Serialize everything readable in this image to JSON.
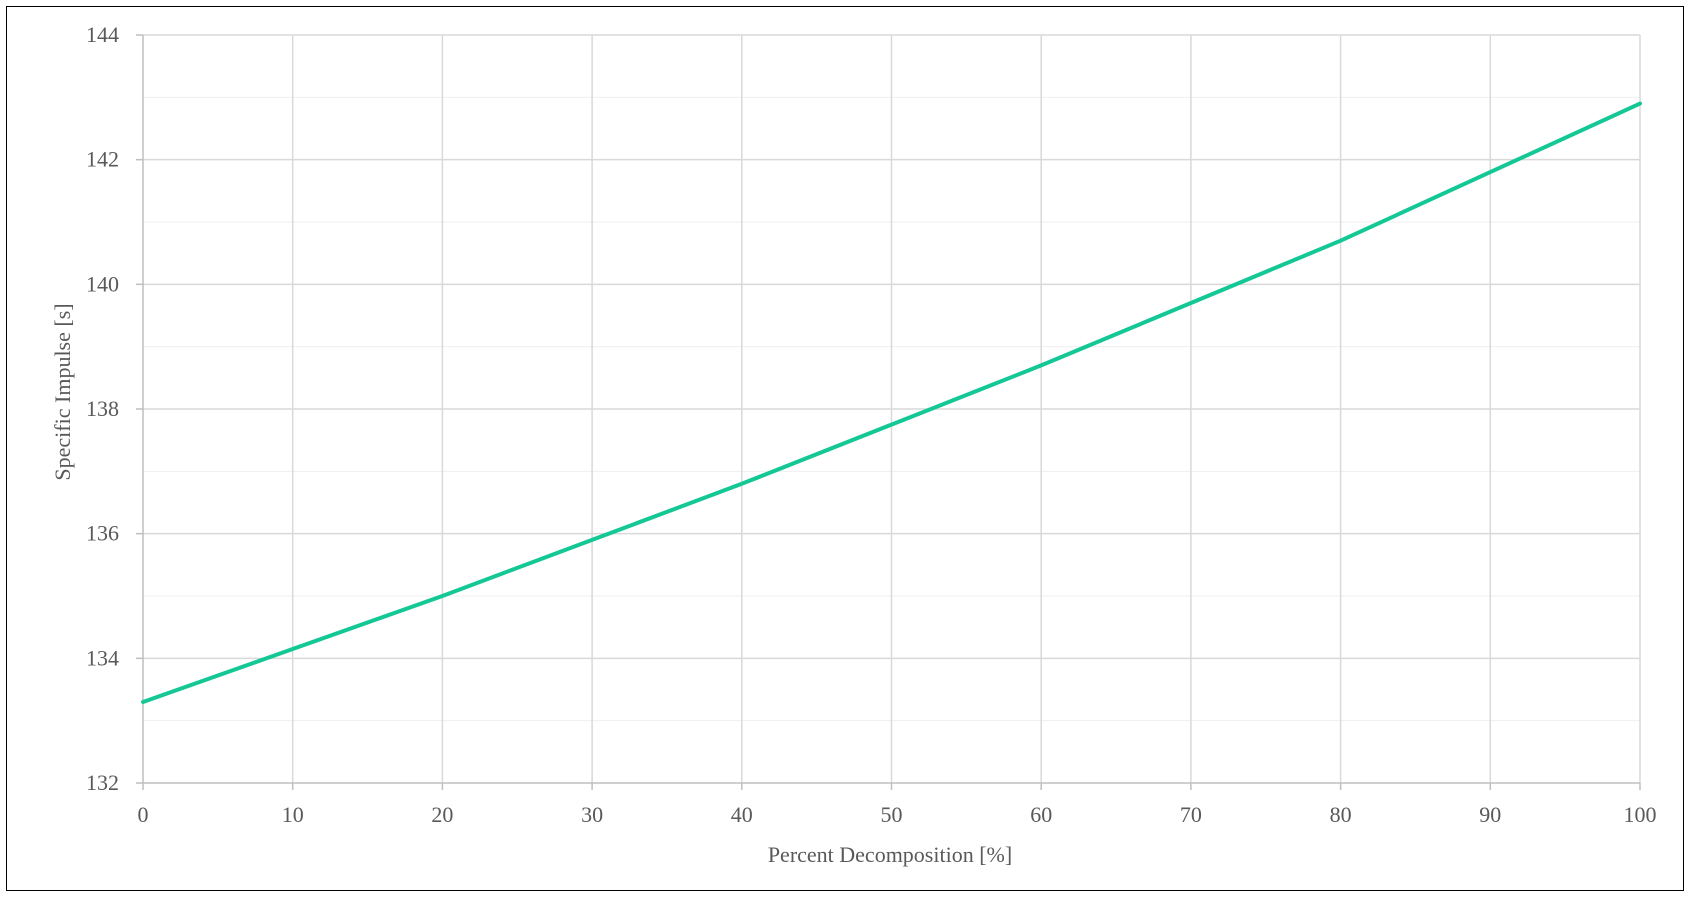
{
  "chart_data": {
    "type": "line",
    "title": "",
    "xlabel": "Percent Decomposition [%]",
    "ylabel": "Specific Impulse [s]",
    "xlim": [
      0,
      100
    ],
    "ylim": [
      132,
      144
    ],
    "x_ticks": [
      0,
      10,
      20,
      30,
      40,
      50,
      60,
      70,
      80,
      90,
      100
    ],
    "y_ticks": [
      132,
      134,
      136,
      138,
      140,
      142,
      144
    ],
    "x_tick_labels": [
      "0",
      "10",
      "20",
      "30",
      "40",
      "50",
      "60",
      "70",
      "80",
      "90",
      "100"
    ],
    "y_tick_labels": [
      "132",
      "134",
      "136",
      "138",
      "140",
      "142",
      "144"
    ],
    "grid": true,
    "legend": "none",
    "series": [
      {
        "color": "#14C896",
        "x": [
          0,
          10,
          20,
          30,
          40,
          50,
          60,
          70,
          80,
          90,
          100
        ],
        "y": [
          133.3,
          134.15,
          135.0,
          135.9,
          136.8,
          137.75,
          138.7,
          139.7,
          140.7,
          141.8,
          142.9
        ]
      }
    ]
  }
}
